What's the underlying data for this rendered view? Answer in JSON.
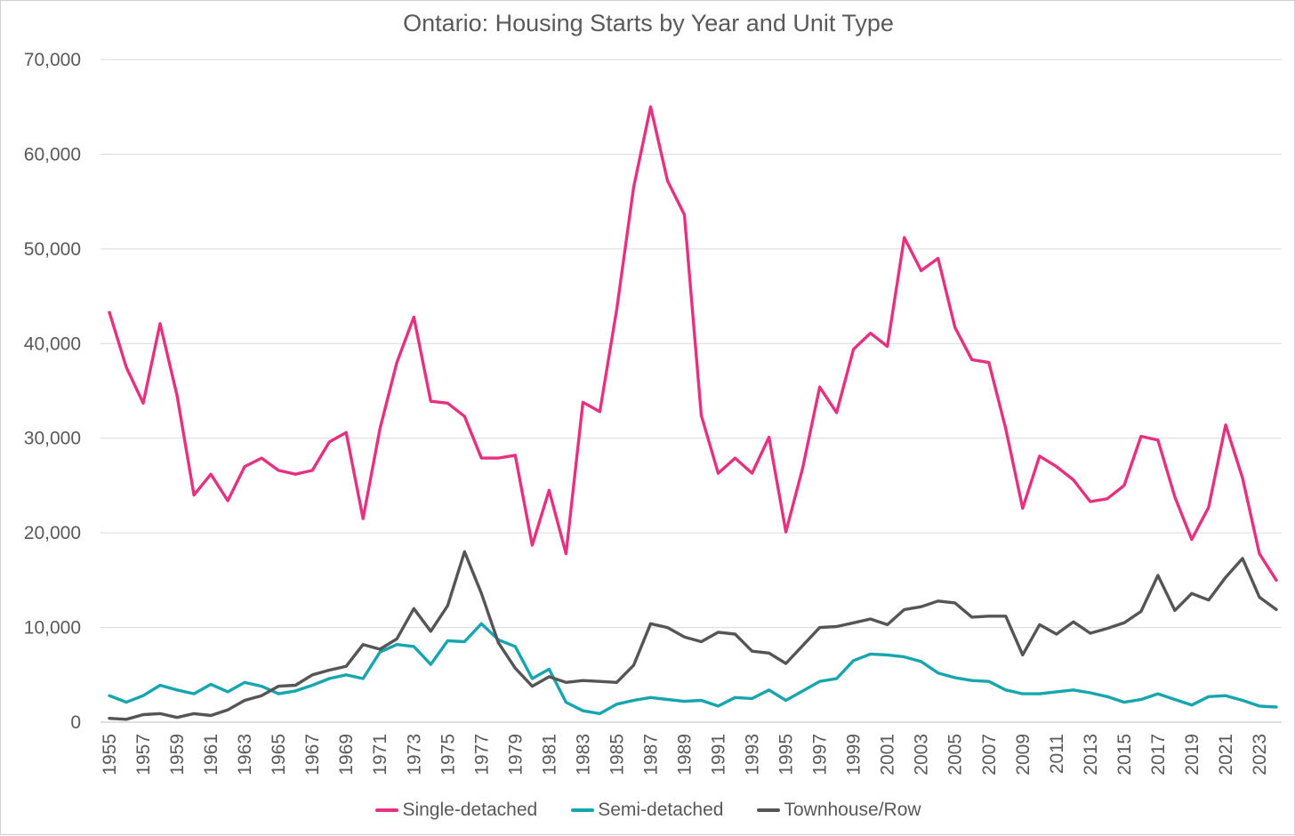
{
  "chart_data": {
    "type": "line",
    "title": "Ontario: Housing Starts by Year and Unit Type",
    "xlabel": "",
    "ylabel": "",
    "ylim": [
      0,
      70000
    ],
    "yticks": [
      0,
      10000,
      20000,
      30000,
      40000,
      50000,
      60000,
      70000
    ],
    "ytick_labels": [
      "0",
      "10,000",
      "20,000",
      "30,000",
      "40,000",
      "50,000",
      "60,000",
      "70,000"
    ],
    "grid": "horizontal",
    "legend_position": "bottom",
    "x": [
      1955,
      1956,
      1957,
      1958,
      1959,
      1960,
      1961,
      1962,
      1963,
      1964,
      1965,
      1966,
      1967,
      1968,
      1969,
      1970,
      1971,
      1972,
      1973,
      1974,
      1975,
      1976,
      1977,
      1978,
      1979,
      1980,
      1981,
      1982,
      1983,
      1984,
      1985,
      1986,
      1987,
      1988,
      1989,
      1990,
      1991,
      1992,
      1993,
      1994,
      1995,
      1996,
      1997,
      1998,
      1999,
      2000,
      2001,
      2002,
      2003,
      2004,
      2005,
      2006,
      2007,
      2008,
      2009,
      2010,
      2011,
      2012,
      2013,
      2014,
      2015,
      2016,
      2017,
      2018,
      2019,
      2020,
      2021,
      2022,
      2023,
      2024
    ],
    "xtick_labels": [
      "1955",
      "1957",
      "1959",
      "1961",
      "1963",
      "1965",
      "1967",
      "1969",
      "1971",
      "1973",
      "1975",
      "1977",
      "1979",
      "1981",
      "1983",
      "1985",
      "1987",
      "1989",
      "1991",
      "1993",
      "1995",
      "1997",
      "1999",
      "2001",
      "2003",
      "2005",
      "2007",
      "2009",
      "2011",
      "2013",
      "2015",
      "2017",
      "2019",
      "2021",
      "2023"
    ],
    "series": [
      {
        "name": "Single-detached",
        "color": "#e5317f",
        "values": [
          43300,
          37500,
          33700,
          42100,
          34500,
          24000,
          26200,
          23400,
          27000,
          27900,
          26600,
          26200,
          26600,
          29600,
          30600,
          21500,
          31000,
          38000,
          42800,
          33900,
          33700,
          32300,
          27900,
          27900,
          28200,
          18700,
          24500,
          17800,
          33800,
          32800,
          43600,
          56500,
          65000,
          57200,
          53600,
          32400,
          26300,
          27900,
          26300,
          30100,
          20100,
          26900,
          35400,
          32700,
          39400,
          41100,
          39700,
          51200,
          47700,
          49000,
          41700,
          38300,
          38000,
          31000,
          22600,
          28100,
          27000,
          25600,
          23300,
          23600,
          25000,
          30200,
          29800,
          23800,
          19300,
          22700,
          31400,
          25800,
          17800,
          15000
        ]
      },
      {
        "name": "Semi-detached",
        "color": "#17a5b0",
        "values": [
          2800,
          2100,
          2800,
          3900,
          3400,
          3000,
          4000,
          3200,
          4200,
          3800,
          3000,
          3300,
          3900,
          4600,
          5000,
          4600,
          7400,
          8200,
          8000,
          6100,
          8600,
          8500,
          10400,
          8700,
          8000,
          4600,
          5600,
          2100,
          1200,
          900,
          1900,
          2300,
          2600,
          2400,
          2200,
          2300,
          1700,
          2600,
          2500,
          3400,
          2300,
          3300,
          4300,
          4600,
          6500,
          7200,
          7100,
          6900,
          6400,
          5200,
          4700,
          4400,
          4300,
          3400,
          3000,
          3000,
          3200,
          3400,
          3100,
          2700,
          2100,
          2400,
          3000,
          2400,
          1800,
          2700,
          2800,
          2300,
          1700,
          1600
        ]
      },
      {
        "name": "Townhouse/Row",
        "color": "#555555",
        "values": [
          400,
          300,
          800,
          900,
          500,
          900,
          700,
          1300,
          2300,
          2800,
          3800,
          3900,
          5000,
          5500,
          5900,
          8200,
          7700,
          8800,
          12000,
          9600,
          12300,
          18000,
          13600,
          8400,
          5700,
          3800,
          4800,
          4200,
          4400,
          4300,
          4200,
          6000,
          10400,
          10000,
          9000,
          8500,
          9500,
          9300,
          7500,
          7300,
          6200,
          8100,
          10000,
          10100,
          10500,
          10900,
          10300,
          11900,
          12200,
          12800,
          12600,
          11100,
          11200,
          11200,
          7100,
          10300,
          9300,
          10600,
          9400,
          9900,
          10500,
          11700,
          15500,
          11800,
          13600,
          12900,
          15300,
          17300,
          13200,
          11900
        ]
      }
    ]
  }
}
